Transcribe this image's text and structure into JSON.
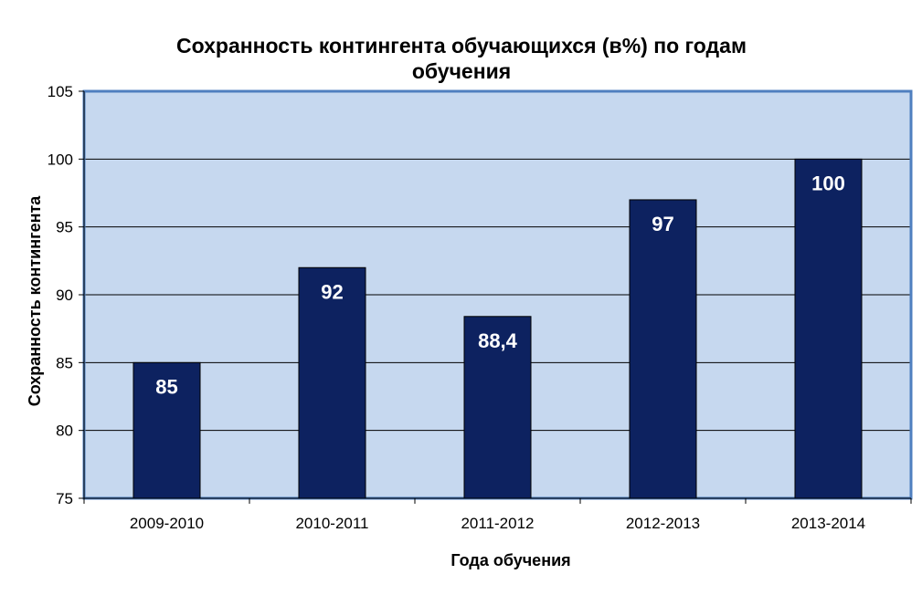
{
  "chart_data": {
    "type": "bar",
    "title_lines": [
      "Сохранность  контингента  обучающихся (в%)  по годам",
      "обучения"
    ],
    "xlabel": "Года обучения",
    "ylabel": "Сохранность контингента",
    "categories": [
      "2009-2010",
      "2010-2011",
      "2011-2012",
      "2012-2013",
      "2013-2014"
    ],
    "values": [
      85,
      92,
      88.4,
      97,
      100
    ],
    "data_labels": [
      "85",
      "92",
      "88,4",
      "97",
      "100"
    ],
    "ylim": [
      75,
      105
    ],
    "yticks": [
      "75",
      "80",
      "85",
      "90",
      "95",
      "100",
      "105"
    ],
    "grid": true,
    "colors": {
      "bar": "#0d2260",
      "plot_bg": "#c6d8ef",
      "plot_border": "#4f7fbf",
      "grid": "#000000"
    }
  }
}
